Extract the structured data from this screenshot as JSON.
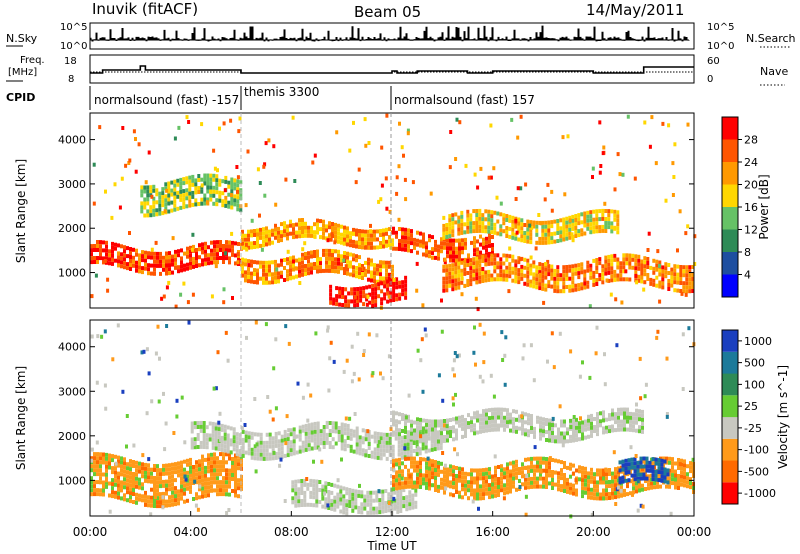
{
  "header": {
    "station": "Inuvik (fitACF)",
    "beam": "Beam 05",
    "date": "14/May/2011"
  },
  "panels": {
    "nsky": {
      "label": "N.Sky",
      "right_label": "N.Search",
      "left_ticks": [
        "10^5",
        "10^0"
      ],
      "right_ticks": [
        "10^5",
        "10^0"
      ]
    },
    "freq": {
      "label_line1": "Freq.",
      "label_line2": "[MHz]",
      "right_label": "Nave",
      "left_ticks": [
        "18",
        "8"
      ],
      "right_ticks": [
        "60",
        "0"
      ]
    },
    "cpid": {
      "label": "CPID",
      "segments": [
        {
          "text": "normalsound (fast) -157",
          "start_hour": 0,
          "end_hour": 6.0
        },
        {
          "text": "themis 3300",
          "start_hour": 6.0,
          "end_hour": 12.0
        },
        {
          "text": "normalsound (fast) 157",
          "start_hour": 12.0,
          "end_hour": 24
        }
      ]
    }
  },
  "colors": {
    "power": [
      "#0000ff",
      "#1e4fa0",
      "#2e8b57",
      "#66c266",
      "#ffd700",
      "#ff9900",
      "#ff5500",
      "#ff0000"
    ],
    "velocity": [
      "#ff0000",
      "#ff6a00",
      "#ff9a1a",
      "#c8c8c0",
      "#66cc33",
      "#2e8b57",
      "#1c7a9a",
      "#1a3fbf"
    ]
  },
  "chart_data": [
    {
      "type": "heatmap",
      "name": "Power",
      "xlabel": "",
      "ylabel": "Slant Range [km]",
      "xlim": [
        0,
        24
      ],
      "ylim": [
        200,
        4600
      ],
      "yticks": [
        1000,
        2000,
        3000,
        4000
      ],
      "colorbar": {
        "label": "Power [dB]",
        "ticks": [
          "4",
          "8",
          "12",
          "16",
          "20",
          "24",
          "28"
        ],
        "range": [
          0,
          30
        ]
      },
      "bands": [
        {
          "range_km": [
            1100,
            1600
          ],
          "hours": [
            0,
            6
          ],
          "level_db": 26
        },
        {
          "range_km": [
            900,
            1400
          ],
          "hours": [
            6,
            12
          ],
          "level_db": 22
        },
        {
          "range_km": [
            1700,
            2100
          ],
          "hours": [
            6,
            12
          ],
          "level_db": 20
        },
        {
          "range_km": [
            300,
            800
          ],
          "hours": [
            9.5,
            12.5
          ],
          "level_db": 28
        },
        {
          "range_km": [
            1400,
            1900
          ],
          "hours": [
            12,
            16
          ],
          "level_db": 24
        },
        {
          "range_km": [
            700,
            1300
          ],
          "hours": [
            14,
            24
          ],
          "level_db": 22
        },
        {
          "range_km": [
            1800,
            2300
          ],
          "hours": [
            14,
            21
          ],
          "level_db": 18
        },
        {
          "range_km": [
            2400,
            3100
          ],
          "hours": [
            2,
            6
          ],
          "level_db": 14
        }
      ]
    },
    {
      "type": "heatmap",
      "name": "Velocity",
      "xlabel": "Time UT",
      "ylabel": "Slant Range [km]",
      "xlim": [
        0,
        24
      ],
      "ylim": [
        200,
        4600
      ],
      "xticks": [
        "00:00",
        "04:00",
        "08:00",
        "12:00",
        "16:00",
        "20:00",
        "00:00"
      ],
      "yticks": [
        1000,
        2000,
        3000,
        4000
      ],
      "colorbar": {
        "label": "Velocity [m s^-1]",
        "ticks": [
          "1000",
          "500",
          "100",
          "25",
          "-25",
          "-100",
          "-500",
          "-1000"
        ]
      },
      "bands": [
        {
          "range_km": [
            600,
            1500
          ],
          "hours": [
            0,
            6
          ],
          "velocity": -200
        },
        {
          "range_km": [
            1600,
            2200
          ],
          "hours": [
            4,
            14
          ],
          "velocity": 0
        },
        {
          "range_km": [
            300,
            900
          ],
          "hours": [
            8,
            13
          ],
          "velocity": 0
        },
        {
          "range_km": [
            700,
            1400
          ],
          "hours": [
            12,
            24
          ],
          "velocity": -250
        },
        {
          "range_km": [
            900,
            1400
          ],
          "hours": [
            21,
            23
          ],
          "velocity": 800
        },
        {
          "range_km": [
            2000,
            2500
          ],
          "hours": [
            12,
            22
          ],
          "velocity": 0
        }
      ]
    }
  ]
}
